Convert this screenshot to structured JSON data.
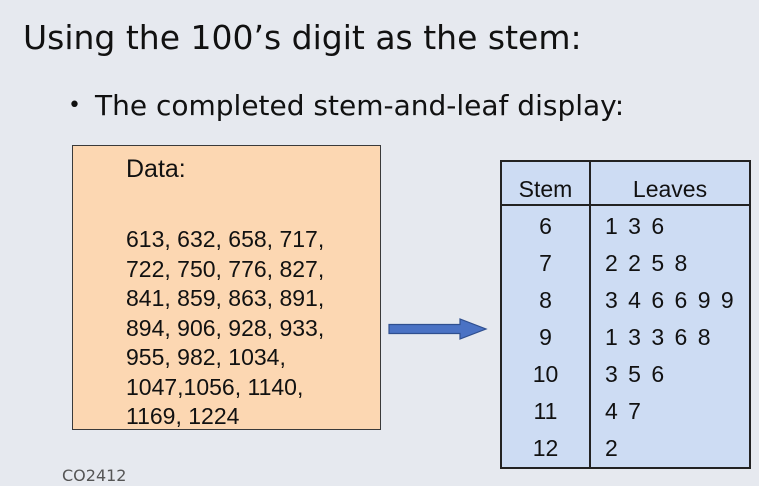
{
  "slide": {
    "title": "Using the 100’s digit as the stem:",
    "bullet": "The completed stem-and-leaf display:",
    "footer": "CO2412"
  },
  "data_box": {
    "label": "Data:",
    "lines": [
      "613, 632, 658, 717,",
      "722, 750, 776, 827,",
      "841, 859, 863, 891,",
      "894, 906, 928, 933,",
      "955, 982, 1034,",
      "1047,1056, 1140,",
      "1169, 1224"
    ]
  },
  "stem_table": {
    "headers": {
      "stem": "Stem",
      "leaves": "Leaves"
    },
    "rows": [
      {
        "stem": "6",
        "leaves": "1 3 6"
      },
      {
        "stem": "7",
        "leaves": "2 2 5 8"
      },
      {
        "stem": "8",
        "leaves": "3 4 6 6 9 9"
      },
      {
        "stem": "9",
        "leaves": "1 3 3 6 8"
      },
      {
        "stem": "10",
        "leaves": "3 5 6"
      },
      {
        "stem": "11",
        "leaves": "4 7"
      },
      {
        "stem": "12",
        "leaves": "2"
      }
    ]
  },
  "colors": {
    "slide_background": "#e6e9ef",
    "data_box_fill": "#fcd7b2",
    "table_fill": "#cddcf3",
    "arrow": "#4a72c4"
  },
  "icons": {
    "bullet": "bullet-dot",
    "arrow": "right-arrow"
  }
}
